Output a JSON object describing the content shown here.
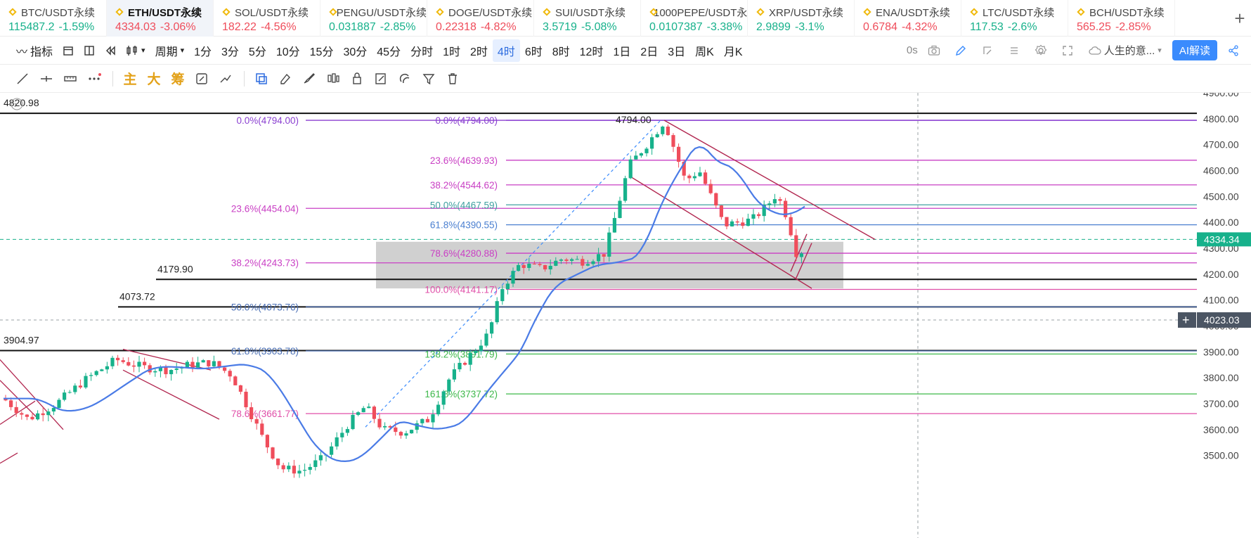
{
  "tickers": [
    {
      "name": "BTC/USDT永续",
      "price": "115487.2",
      "change": "-1.59%",
      "price_dir": "up",
      "active": false
    },
    {
      "name": "ETH/USDT永续",
      "price": "4334.03",
      "change": "-3.06%",
      "price_dir": "down",
      "active": true
    },
    {
      "name": "SOL/USDT永续",
      "price": "182.22",
      "change": "-4.56%",
      "price_dir": "down",
      "active": false
    },
    {
      "name": "PENGU/USDT永续",
      "price": "0.031887",
      "change": "-2.85%",
      "price_dir": "up",
      "active": false
    },
    {
      "name": "DOGE/USDT永续",
      "price": "0.22318",
      "change": "-4.82%",
      "price_dir": "down",
      "active": false
    },
    {
      "name": "SUI/USDT永续",
      "price": "3.5719",
      "change": "-5.08%",
      "price_dir": "up",
      "active": false
    },
    {
      "name": "1000PEPE/USDT永续",
      "price": "0.0107387",
      "change": "-3.38%",
      "price_dir": "up",
      "active": false
    },
    {
      "name": "XRP/USDT永续",
      "price": "2.9899",
      "change": "-3.1%",
      "price_dir": "up",
      "active": false
    },
    {
      "name": "ENA/USDT永续",
      "price": "0.6784",
      "change": "-4.32%",
      "price_dir": "down",
      "active": false
    },
    {
      "name": "LTC/USDT永续",
      "price": "117.53",
      "change": "-2.6%",
      "price_dir": "up",
      "active": false
    },
    {
      "name": "BCH/USDT永续",
      "price": "565.25",
      "change": "-2.85%",
      "price_dir": "down",
      "active": false
    }
  ],
  "toolbar": {
    "indicators": "指标",
    "period": "周期",
    "intervals": [
      "1分",
      "3分",
      "5分",
      "10分",
      "15分",
      "30分",
      "45分",
      "分时",
      "1时",
      "2时",
      "4时",
      "6时",
      "8时",
      "12时",
      "1日",
      "2日",
      "3日",
      "周K",
      "月K"
    ],
    "selected_interval": "4时",
    "countdown": "0s",
    "layout_name": "人生的意...",
    "ai_label": "AI解读"
  },
  "drawbar": {
    "zhu": "主",
    "da": "大",
    "chou": "筹"
  },
  "chart_data": {
    "type": "candlestick",
    "symbol": "ETH/USDT永续",
    "y_axis": {
      "min": 3450,
      "max": 4935,
      "ticks": [
        3500,
        3600,
        3700,
        3800,
        3900,
        4000,
        4100,
        4200,
        4300,
        4400,
        4500,
        4600,
        4700,
        4800,
        4900
      ],
      "tick_labels": [
        "3500.00",
        "3600.00",
        "3700.00",
        "3800.00",
        "3900.00",
        "4000.00",
        "4100.00",
        "4200.00",
        "4300.00",
        "4400.00",
        "4500.00",
        "4600.00",
        "4700.00",
        "4800.00",
        "4900.00"
      ]
    },
    "current_price": {
      "label": "4334.34",
      "value": 4334.34
    },
    "crosshair_price": {
      "label": "4023.03",
      "value": 4023.03
    },
    "horizontal_levels": [
      {
        "label": "4820.98",
        "value": 4820.98
      },
      {
        "label": "4179.90",
        "value": 4179.9
      },
      {
        "label": "4073.72",
        "value": 4073.72
      },
      {
        "label": "3904.97",
        "value": 3904.97
      }
    ],
    "high_label": "4794.00",
    "fib_left": [
      {
        "label": "0.0%(4794.00)",
        "value": 4794.0,
        "color": "#8a3fd1"
      },
      {
        "label": "23.6%(4454.04)",
        "value": 4454.04,
        "color": "#c93fc4"
      },
      {
        "label": "38.2%(4243.73)",
        "value": 4243.73,
        "color": "#c93fc4"
      },
      {
        "label": "50.0%(4073.76)",
        "value": 4073.76,
        "color": "#4a6fb5"
      },
      {
        "label": "61.8%(3903.78)",
        "value": 3903.78,
        "color": "#4a6fb5"
      },
      {
        "label": "78.6%(3661.77)",
        "value": 3661.77,
        "color": "#e04fa8"
      }
    ],
    "fib_right": [
      {
        "label": "0.0%(4794.00)",
        "value": 4794.0,
        "color": "#8a3fd1"
      },
      {
        "label": "23.6%(4639.93)",
        "value": 4639.93,
        "color": "#c93fc4"
      },
      {
        "label": "38.2%(4544.62)",
        "value": 4544.62,
        "color": "#c93fc4"
      },
      {
        "label": "50.0%(4467.59)",
        "value": 4467.59,
        "color": "#3fa0a0"
      },
      {
        "label": "61.8%(4390.55)",
        "value": 4390.55,
        "color": "#4a7fd0"
      },
      {
        "label": "78.6%(4280.88)",
        "value": 4280.88,
        "color": "#c93fc4"
      },
      {
        "label": "100.0%(4141.17)",
        "value": 4141.17,
        "color": "#e04fa8"
      },
      {
        "label": "138.2%(3891.79)",
        "value": 3891.79,
        "color": "#3db84a"
      },
      {
        "label": "161.8%(3737.72)",
        "value": 3737.72,
        "color": "#3db84a"
      }
    ],
    "zone": {
      "high": 4325,
      "low": 4145
    },
    "colors": {
      "up": "#17b18b",
      "down": "#ef4d5b",
      "ma": "#4a7be6",
      "channel": "#b1264f"
    }
  }
}
